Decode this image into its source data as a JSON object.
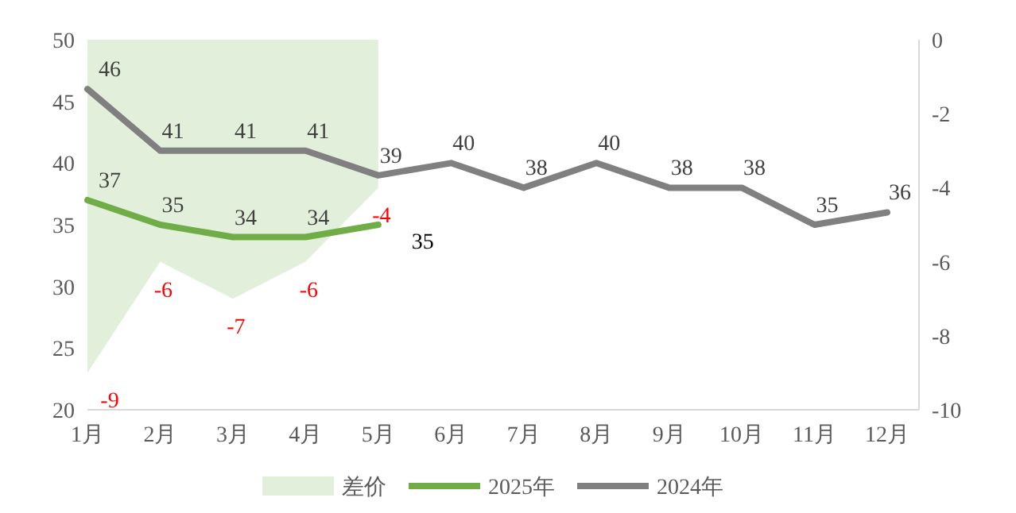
{
  "chart_data": {
    "type": "line",
    "categories": [
      "1月",
      "2月",
      "3月",
      "4月",
      "5月",
      "6月",
      "7月",
      "8月",
      "9月",
      "10月",
      "11月",
      "12月"
    ],
    "ylim": [
      20,
      50
    ],
    "yticks": [
      20,
      25,
      30,
      35,
      40,
      45,
      50
    ],
    "y2lim": [
      -10,
      0
    ],
    "y2ticks": [
      -10,
      -8,
      -6,
      -4,
      -2,
      0
    ],
    "grid": false,
    "legend": "bottom",
    "data_labels": true,
    "series": [
      {
        "name": "差价",
        "type": "area",
        "axis": "y2",
        "color": "#e2efda",
        "values": [
          -9,
          -6,
          -7,
          -6,
          -4,
          null,
          null,
          null,
          null,
          null,
          null,
          null
        ]
      },
      {
        "name": "2025年",
        "color": "#70ad47",
        "values": [
          37,
          35,
          34,
          34,
          35,
          null,
          null,
          null,
          null,
          null,
          null,
          null
        ]
      },
      {
        "name": "2024年",
        "color": "#808080",
        "values": [
          46,
          41,
          41,
          41,
          39,
          40,
          38,
          40,
          38,
          38,
          35,
          36
        ]
      }
    ]
  }
}
